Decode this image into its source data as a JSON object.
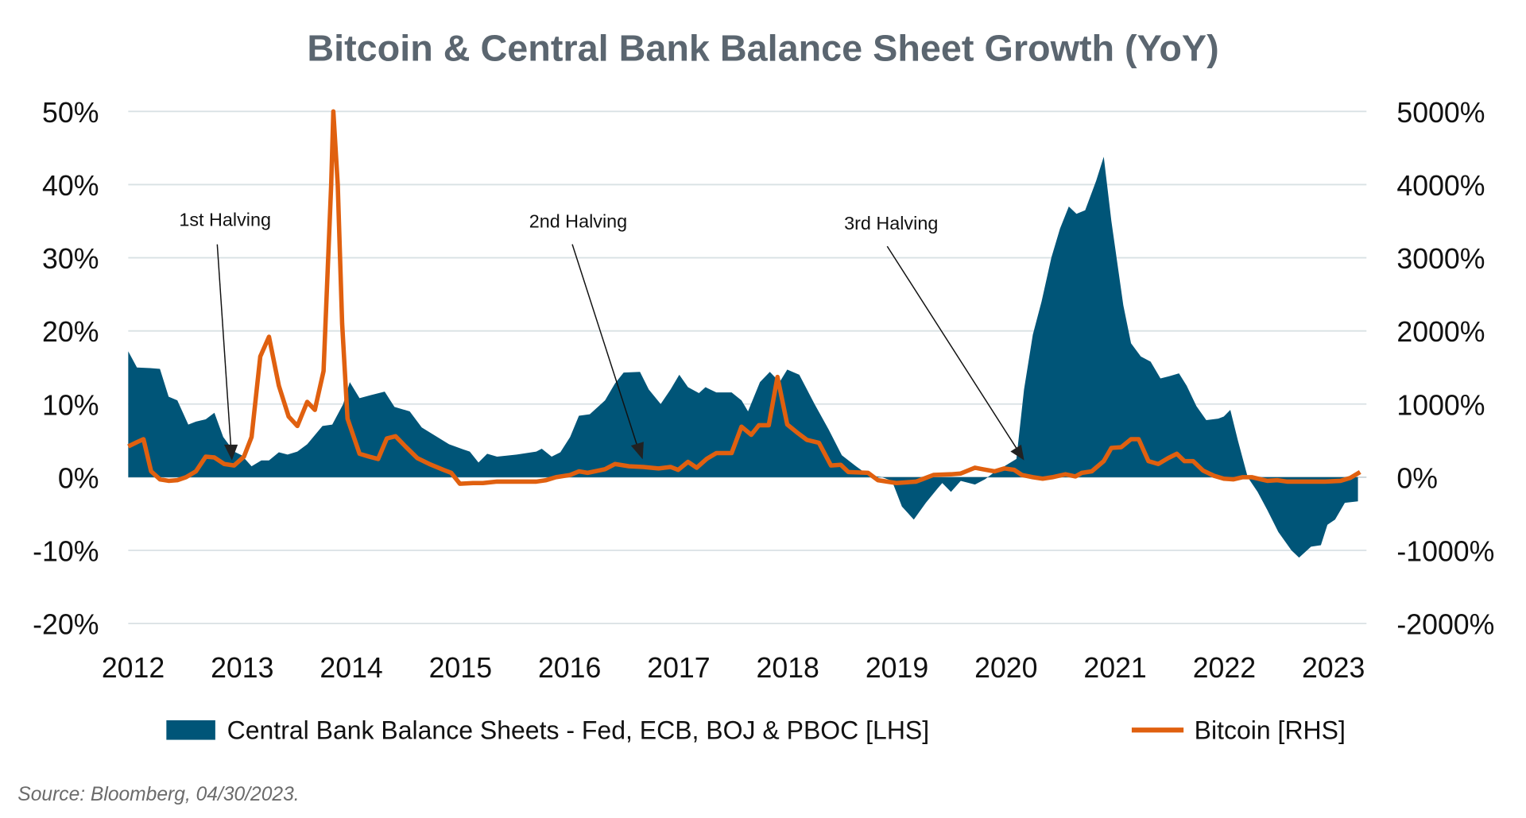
{
  "chart_data": {
    "type": "area+line",
    "title": "Bitcoin & Central Bank Balance Sheet Growth (YoY)",
    "source": "Source: Bloomberg, 04/30/2023.",
    "x_ticks": [
      "2012",
      "2013",
      "2014",
      "2015",
      "2016",
      "2017",
      "2018",
      "2019",
      "2020",
      "2021",
      "2022",
      "2023"
    ],
    "xlim": [
      2012,
      2023.33
    ],
    "y_left": {
      "ylim": [
        -20,
        50
      ],
      "ticks": [
        50,
        40,
        30,
        20,
        10,
        0,
        -10,
        -20
      ],
      "tick_labels": [
        "50%",
        "40%",
        "30%",
        "20%",
        "10%",
        "0%",
        "-10%",
        "-20%"
      ]
    },
    "y_right": {
      "ylim": [
        -2000,
        5000
      ],
      "ticks": [
        5000,
        4000,
        3000,
        2000,
        1000,
        0,
        -1000,
        -2000
      ],
      "tick_labels": [
        "5000%",
        "4000%",
        "3000%",
        "2000%",
        "1000%",
        "0%",
        "-1000%",
        "-2000%"
      ]
    },
    "grid": true,
    "legend_placement": "bottom",
    "colors": {
      "area": "#005578",
      "line": "#e0600f",
      "grid": "#d9e1e4",
      "title": "#5b6670"
    },
    "series": [
      {
        "name": "Central Bank Balance Sheets - Fed, ECB, BOJ & PBOC [LHS]",
        "type": "area",
        "axis": "left",
        "x": [
          2012,
          2012.08,
          2012.2,
          2012.29,
          2012.37,
          2012.45,
          2012.55,
          2012.62,
          2012.71,
          2012.79,
          2012.87,
          2012.97,
          2013.04,
          2013.13,
          2013.22,
          2013.29,
          2013.38,
          2013.46,
          2013.55,
          2013.64,
          2013.78,
          2013.87,
          2013.97,
          2014.03,
          2014.12,
          2014.22,
          2014.35,
          2014.44,
          2014.58,
          2014.69,
          2014.94,
          2015.07,
          2015.13,
          2015.21,
          2015.29,
          2015.38,
          2015.56,
          2015.74,
          2015.79,
          2015.88,
          2015.96,
          2016.05,
          2016.13,
          2016.23,
          2016.37,
          2016.46,
          2016.54,
          2016.69,
          2016.77,
          2016.88,
          2016.97,
          2017.05,
          2017.13,
          2017.23,
          2017.29,
          2017.39,
          2017.53,
          2017.62,
          2017.68,
          2017.79,
          2017.88,
          2017.97,
          2018.04,
          2018.15,
          2018.29,
          2018.42,
          2018.54,
          2018.67,
          2018.78,
          2018.91,
          2019.0,
          2019.09,
          2019.2,
          2019.31,
          2019.42,
          2019.46,
          2019.54,
          2019.63,
          2019.76,
          2019.85,
          2019.94,
          2020.03,
          2020.14,
          2020.21,
          2020.29,
          2020.37,
          2020.46,
          2020.54,
          2020.62,
          2020.69,
          2020.77,
          2020.87,
          2020.94,
          2021.01,
          2021.12,
          2021.19,
          2021.28,
          2021.37,
          2021.46,
          2021.54,
          2021.63,
          2021.7,
          2021.79,
          2021.88,
          2021.99,
          2022.04,
          2022.1,
          2022.17,
          2022.26,
          2022.35,
          2022.44,
          2022.54,
          2022.66,
          2022.73,
          2022.84,
          2022.93,
          2022.99,
          2023.06,
          2023.15,
          2023.27
        ],
        "values": [
          17.2,
          15,
          14.9,
          14.8,
          11,
          10.5,
          7.2,
          7.6,
          7.9,
          8.8,
          5.5,
          3.5,
          3.0,
          1.5,
          2.3,
          2.3,
          3.4,
          3.1,
          3.5,
          4.5,
          7,
          7.2,
          10,
          13,
          10.8,
          11.2,
          11.7,
          9.6,
          9,
          6.8,
          4.5,
          3.8,
          3.5,
          2,
          3.2,
          2.8,
          3.1,
          3.5,
          3.9,
          2.8,
          3.4,
          5.5,
          8.4,
          8.6,
          10.5,
          12.8,
          14.3,
          14.4,
          12,
          10,
          12,
          14,
          12.3,
          11.5,
          12.3,
          11.6,
          11.6,
          10.5,
          9,
          13,
          14.4,
          13,
          14.7,
          14,
          10,
          6.5,
          3,
          1.5,
          0.3,
          0,
          -0.5,
          -4,
          -5.8,
          -3.5,
          -1.5,
          -0.8,
          -2,
          -0.5,
          -1,
          -0.3,
          0.7,
          1.5,
          2.5,
          12,
          19.5,
          24,
          30,
          34,
          37,
          36,
          36.5,
          40.5,
          43.8,
          35,
          23.5,
          18.3,
          16.5,
          15.8,
          13.5,
          13.8,
          14.2,
          12.5,
          9.7,
          7.8,
          8,
          8.3,
          9.2,
          5,
          0,
          -2,
          -4.5,
          -7.5,
          -10,
          -11,
          -9.5,
          -9.3,
          -6.5,
          -5.8,
          -3.5,
          -3.3
        ]
      },
      {
        "name": "Bitcoin [RHS]",
        "type": "line",
        "axis": "right",
        "x": [
          2012,
          2012.08,
          2012.14,
          2012.21,
          2012.29,
          2012.37,
          2012.45,
          2012.53,
          2012.62,
          2012.71,
          2012.79,
          2012.88,
          2012.97,
          2013.06,
          2013.13,
          2013.21,
          2013.29,
          2013.38,
          2013.47,
          2013.55,
          2013.64,
          2013.71,
          2013.79,
          2013.86,
          2013.88,
          2013.92,
          2013.96,
          2014.01,
          2014.12,
          2014.21,
          2014.29,
          2014.37,
          2014.45,
          2014.54,
          2014.65,
          2014.76,
          2014.89,
          2014.96,
          2015.04,
          2015.16,
          2015.25,
          2015.38,
          2015.56,
          2015.74,
          2015.83,
          2015.92,
          2016.05,
          2016.13,
          2016.21,
          2016.37,
          2016.46,
          2016.59,
          2016.72,
          2016.86,
          2016.97,
          2017.04,
          2017.13,
          2017.21,
          2017.3,
          2017.39,
          2017.53,
          2017.62,
          2017.71,
          2017.78,
          2017.87,
          2017.95,
          2018.04,
          2018.13,
          2018.22,
          2018.33,
          2018.44,
          2018.53,
          2018.6,
          2018.78,
          2018.87,
          2019.04,
          2019.22,
          2019.29,
          2019.38,
          2019.54,
          2019.63,
          2019.76,
          2019.83,
          2019.94,
          2020.03,
          2020.12,
          2020.19,
          2020.29,
          2020.38,
          2020.47,
          2020.59,
          2020.68,
          2020.74,
          2020.83,
          2020.94,
          2021.01,
          2021.1,
          2021.19,
          2021.26,
          2021.35,
          2021.44,
          2021.53,
          2021.61,
          2021.68,
          2021.76,
          2021.85,
          2021.95,
          2022.04,
          2022.13,
          2022.21,
          2022.3,
          2022.38,
          2022.44,
          2022.53,
          2022.62,
          2022.79,
          2022.97,
          2023.11,
          2023.2,
          2023.29
        ],
        "values": [
          420,
          480,
          520,
          80,
          -30,
          -50,
          -40,
          0,
          80,
          280,
          270,
          180,
          160,
          280,
          550,
          1650,
          1920,
          1250,
          830,
          700,
          1030,
          920,
          1450,
          4000,
          5000,
          4000,
          2100,
          800,
          320,
          280,
          250,
          530,
          560,
          420,
          260,
          180,
          100,
          60,
          -90,
          -80,
          -80,
          -60,
          -60,
          -60,
          -40,
          0,
          30,
          80,
          60,
          110,
          180,
          150,
          140,
          120,
          140,
          100,
          210,
          130,
          250,
          330,
          330,
          690,
          580,
          710,
          710,
          1370,
          720,
          610,
          510,
          470,
          160,
          170,
          70,
          60,
          -40,
          -80,
          -60,
          -20,
          30,
          40,
          50,
          130,
          110,
          80,
          120,
          100,
          30,
          0,
          -20,
          0,
          40,
          10,
          60,
          80,
          220,
          400,
          410,
          520,
          520,
          220,
          180,
          260,
          320,
          220,
          220,
          90,
          20,
          -20,
          -30,
          0,
          0,
          -30,
          -50,
          -40,
          -60,
          -60,
          -60,
          -50,
          -10,
          70
        ]
      }
    ],
    "annotations": [
      {
        "text": "1st Halving"
      },
      {
        "text": "2nd Halving"
      },
      {
        "text": "3rd Halving"
      }
    ],
    "legend": [
      {
        "label": "Central Bank Balance Sheets - Fed, ECB, BOJ & PBOC [LHS]"
      },
      {
        "label": "Bitcoin [RHS]"
      }
    ]
  }
}
